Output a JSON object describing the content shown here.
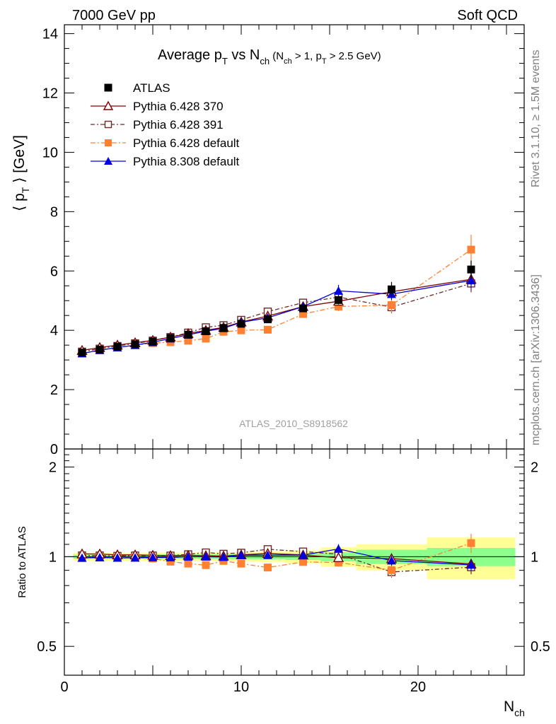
{
  "header": {
    "left": "7000 GeV pp",
    "right": "Soft QCD"
  },
  "title": {
    "main": "Average p",
    "sub1": "T",
    "mid": " vs N",
    "sub2": "ch",
    "cond_a": " (N",
    "cond_sub1": "ch",
    "cond_b": " > 1, p",
    "cond_sub2": "T",
    "cond_c": " > 2.5 GeV)"
  },
  "ylabel_top": "⟨ p_T ⟩ [GeV]",
  "ylabel_bottom": "Ratio to ATLAS",
  "xlabel": "N_ch",
  "watermark": "ATLAS_2010_S8918562",
  "side_text": {
    "rivet": "Rivet 3.1.10, ≥ 1.5M events",
    "mcplots": "mcplots.cern.ch [arXiv:1306.3436]"
  },
  "colors": {
    "atlas": "#000000",
    "p370": "#800000",
    "p391": "#6a2a2a",
    "p6def": "#ff8030",
    "p8def": "#0000e0",
    "band_inner": "#8cff8c",
    "band_outer": "#ffff96"
  },
  "chart_data": {
    "type": "scatter",
    "title": "Average p_T vs N_ch (N_ch > 1, p_T > 2.5 GeV)",
    "xlabel": "N_ch",
    "ylabel": "⟨ p_T ⟩ [GeV]",
    "xlim": [
      0,
      26
    ],
    "ylim": [
      0,
      14.3
    ],
    "ratio_ylim": [
      0.4,
      2.3
    ],
    "xticks": [
      0,
      10,
      20
    ],
    "yticks": [
      0,
      2,
      4,
      6,
      8,
      10,
      12,
      14
    ],
    "ratio_yticks": [
      0.5,
      1,
      2
    ],
    "legend_position": "top-left",
    "x": [
      1,
      2,
      3,
      4,
      5,
      6,
      7,
      8,
      9,
      10,
      11.5,
      13.5,
      15.5,
      18.5,
      23
    ],
    "x_bins": [
      [
        0.5,
        1.5
      ],
      [
        1.5,
        2.5
      ],
      [
        2.5,
        3.5
      ],
      [
        3.5,
        4.5
      ],
      [
        4.5,
        5.5
      ],
      [
        5.5,
        6.5
      ],
      [
        6.5,
        7.5
      ],
      [
        7.5,
        8.5
      ],
      [
        8.5,
        9.5
      ],
      [
        9.5,
        10.5
      ],
      [
        10.5,
        12.5
      ],
      [
        12.5,
        14.5
      ],
      [
        14.5,
        16.5
      ],
      [
        16.5,
        20.5
      ],
      [
        20.5,
        25.5
      ]
    ],
    "series": [
      {
        "name": "ATLAS",
        "key": "atlas",
        "marker": "filled-square",
        "values": [
          3.25,
          3.35,
          3.45,
          3.53,
          3.62,
          3.74,
          3.85,
          3.97,
          4.08,
          4.22,
          4.37,
          4.74,
          5.02,
          5.38,
          6.05
        ],
        "errors": [
          0.05,
          0.05,
          0.05,
          0.05,
          0.06,
          0.06,
          0.06,
          0.07,
          0.07,
          0.08,
          0.08,
          0.1,
          0.15,
          0.25,
          0.3
        ]
      },
      {
        "name": "Pythia 6.428 370",
        "key": "p370",
        "marker": "open-triangle",
        "values": [
          3.32,
          3.42,
          3.5,
          3.58,
          3.66,
          3.77,
          3.89,
          4.0,
          4.1,
          4.28,
          4.48,
          4.8,
          4.98,
          5.3,
          5.72
        ],
        "errors": [
          0.02,
          0.02,
          0.02,
          0.02,
          0.02,
          0.03,
          0.03,
          0.03,
          0.04,
          0.05,
          0.05,
          0.07,
          0.1,
          0.12,
          0.2
        ]
      },
      {
        "name": "Pythia 6.428 391",
        "key": "p391",
        "marker": "open-square",
        "values": [
          3.28,
          3.38,
          3.47,
          3.56,
          3.65,
          3.77,
          3.92,
          4.1,
          4.17,
          4.35,
          4.63,
          4.93,
          5.12,
          4.78,
          5.58
        ],
        "errors": [
          0.02,
          0.02,
          0.02,
          0.02,
          0.02,
          0.03,
          0.03,
          0.03,
          0.04,
          0.05,
          0.05,
          0.07,
          0.1,
          0.2,
          0.3
        ]
      },
      {
        "name": "Pythia 6.428 default",
        "key": "p6def",
        "marker": "filled-square",
        "values": [
          3.22,
          3.33,
          3.42,
          3.5,
          3.57,
          3.6,
          3.65,
          3.72,
          3.95,
          4.0,
          4.02,
          4.55,
          4.8,
          4.85,
          6.72
        ],
        "errors": [
          0.02,
          0.02,
          0.02,
          0.02,
          0.02,
          0.03,
          0.03,
          0.03,
          0.04,
          0.05,
          0.05,
          0.07,
          0.15,
          0.25,
          0.5
        ]
      },
      {
        "name": "Pythia 8.308 default",
        "key": "p8def",
        "marker": "filled-triangle",
        "values": [
          3.22,
          3.33,
          3.42,
          3.5,
          3.6,
          3.72,
          3.85,
          3.97,
          4.07,
          4.27,
          4.42,
          4.8,
          5.33,
          5.22,
          5.68
        ],
        "errors": [
          0.02,
          0.02,
          0.02,
          0.02,
          0.02,
          0.03,
          0.03,
          0.03,
          0.04,
          0.05,
          0.05,
          0.07,
          0.2,
          0.2,
          0.25
        ]
      }
    ],
    "ratio_band": {
      "inner": [
        0.015,
        0.015,
        0.015,
        0.015,
        0.017,
        0.017,
        0.017,
        0.018,
        0.018,
        0.02,
        0.02,
        0.025,
        0.035,
        0.055,
        0.07
      ],
      "outer": [
        0.03,
        0.03,
        0.03,
        0.03,
        0.032,
        0.032,
        0.033,
        0.034,
        0.035,
        0.035,
        0.04,
        0.05,
        0.075,
        0.1,
        0.16
      ]
    }
  }
}
